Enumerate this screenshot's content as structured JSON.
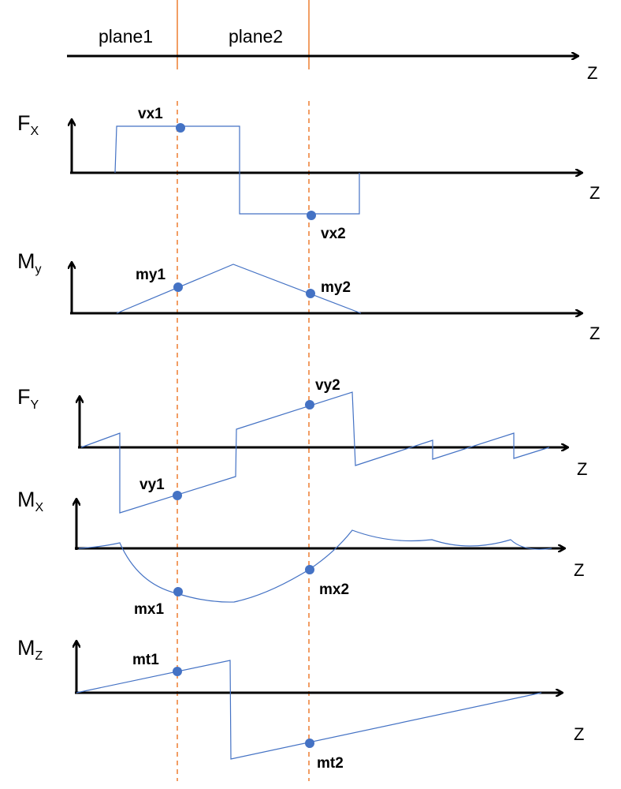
{
  "planes": {
    "plane1": "plane1",
    "plane2": "plane2"
  },
  "axis_z": "Z",
  "panels": {
    "fx": {
      "var": "F",
      "sub": "X",
      "p1": "vx1",
      "p2": "vx2"
    },
    "my": {
      "var": "M",
      "sub": "y",
      "p1": "my1",
      "p2": "my2"
    },
    "fy": {
      "var": "F",
      "sub": "Y",
      "p1": "vy1",
      "p2": "vy2"
    },
    "mx": {
      "var": "M",
      "sub": "X",
      "p1": "mx1",
      "p2": "mx2"
    },
    "mz": {
      "var": "M",
      "sub": "Z",
      "p1": "mt1",
      "p2": "mt2"
    }
  },
  "colors": {
    "curve": "#4472C4",
    "plane_line": "#ED7D31",
    "axis": "#000000"
  }
}
